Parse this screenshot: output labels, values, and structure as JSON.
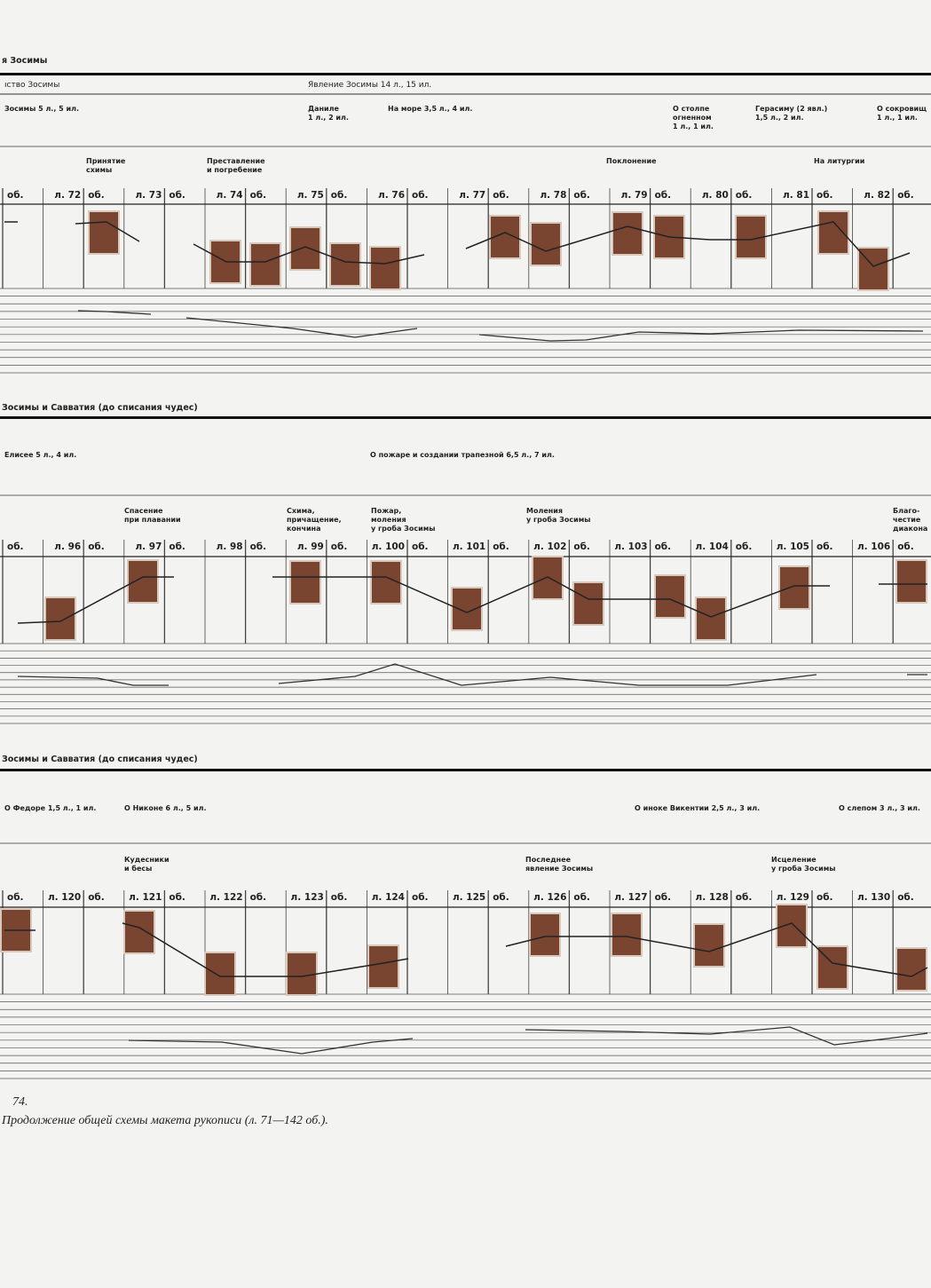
{
  "bands": [
    {
      "title": "я Зосимы",
      "sections": [
        "ıство Зосимы",
        "Явление Зосимы 14 л., 15 ил."
      ],
      "episodes": [
        "Зосимы 5 л., 5 ил.",
        "Даниле\n1 л., 2 ил.",
        "На море 3,5 л., 4 ил.",
        "О столпе\nогненном\n1 л., 1 ил.",
        "Герасиму (2 явл.)\n1,5 л., 2 ил.",
        "О сокровищ\n1 л., 1 ил."
      ],
      "subjects": [
        "Принятие\nсхимы",
        "Преставление\nи погребение",
        "Поклонение",
        "На литургии"
      ],
      "folios": [
        "об.",
        "л. 72",
        "об.",
        "л. 73",
        "об.",
        "л. 74",
        "об.",
        "л. 75",
        "об.",
        "л. 76",
        "об.",
        "л. 77",
        "об.",
        "л. 78",
        "об.",
        "л. 79",
        "об.",
        "л. 80",
        "об.",
        "л. 81",
        "об.",
        "л. 82",
        "об."
      ]
    },
    {
      "title": "Зосимы и Савватия (до списания чудес)",
      "episodes": [
        "Елисее 5 л., 4 ил.",
        "О пожаре и создании трапезной 6,5 л., 7 ил."
      ],
      "subjects": [
        "Спасение\nпри плавании",
        "Схима,\nпричащение,\nкончина",
        "Пожар,\nмоления\nу гроба Зосимы",
        "Моления\nу гроба Зосимы",
        "Благо-\nчестие\nдиакона"
      ],
      "folios": [
        "об.",
        "л. 96",
        "об.",
        "л. 97",
        "об.",
        "л. 98",
        "об.",
        "л. 99",
        "об.",
        "л. 100",
        "об.",
        "л. 101",
        "об.",
        "л. 102",
        "об.",
        "л. 103",
        "об.",
        "л. 104",
        "об.",
        "л. 105",
        "об.",
        "л. 106",
        "об."
      ]
    },
    {
      "title": "Зосимы и Савватия (до списания чудес)",
      "episodes": [
        "О Федоре 1,5 л., 1 ил.",
        "О Никоне 6 л., 5 ил.",
        "О иноке Викентии 2,5 л., 3 ил.",
        "О слепом 3 л., 3 ил."
      ],
      "subjects": [
        "Кудесники\nи бесы",
        "Последнее\nявление Зосимы",
        "Исцеление\nу гроба Зосимы"
      ],
      "folios": [
        "об.",
        "л. 120",
        "об.",
        "л. 121",
        "об.",
        "л. 122",
        "об.",
        "л. 123",
        "об.",
        "л. 124",
        "об.",
        "л. 125",
        "об.",
        "л. 126",
        "об.",
        "л. 127",
        "об.",
        "л. 128",
        "об.",
        "л. 129",
        "об.",
        "л. 130",
        "об."
      ]
    }
  ],
  "caption": {
    "number": "74.",
    "text": "Продолжение общей схемы макета рукописи (л. 71—142 об.)."
  }
}
